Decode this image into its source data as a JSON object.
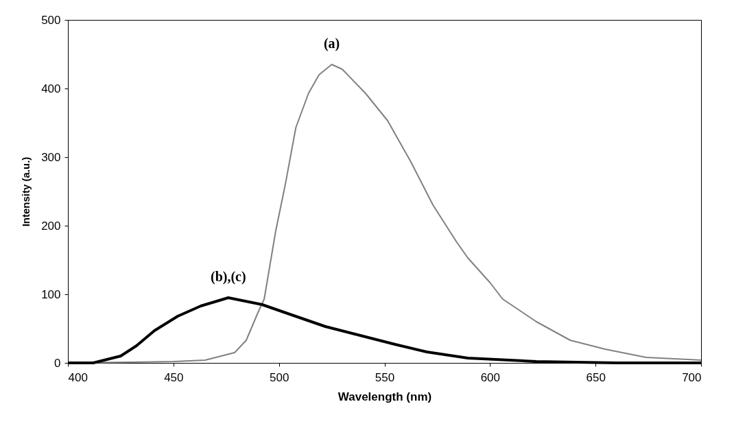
{
  "chart_data": {
    "type": "line",
    "xlabel": "Wavelength (nm)",
    "ylabel": "Intensity (a.u.)",
    "xlim": [
      400,
      700
    ],
    "ylim": [
      0,
      500
    ],
    "xticks": [
      400,
      450,
      500,
      550,
      600,
      650,
      700
    ],
    "yticks": [
      0,
      100,
      200,
      300,
      400,
      500
    ],
    "grid": false,
    "legend": false,
    "marker": "none",
    "series": [
      {
        "name": "(a)",
        "color": "#808080",
        "x": [
          400,
          430,
          450,
          465,
          479,
          484.5,
          490,
          493,
          498.5,
          503,
          508,
          514,
          519,
          525,
          530,
          541,
          551.5,
          562.5,
          573,
          584,
          589.5,
          600,
          606,
          622,
          638,
          654.5,
          674,
          700
        ],
        "values": [
          0,
          1,
          2,
          4,
          15,
          33,
          73,
          93,
          193,
          260,
          343,
          393,
          420,
          435,
          428,
          393,
          353,
          293,
          230,
          177,
          153,
          117,
          93,
          60,
          33,
          20,
          8,
          4
        ]
      },
      {
        "name": "(b),(c)",
        "color": "#000000",
        "x": [
          400,
          412,
          425,
          432.5,
          441,
          452,
          463,
          476,
          492,
          506,
          522,
          538.5,
          555,
          570,
          589.5,
          622,
          660,
          700
        ],
        "values": [
          0,
          0,
          10,
          25,
          47,
          68,
          83,
          95,
          85,
          70,
          53,
          40,
          27,
          16,
          7,
          2,
          0,
          0
        ]
      }
    ]
  }
}
